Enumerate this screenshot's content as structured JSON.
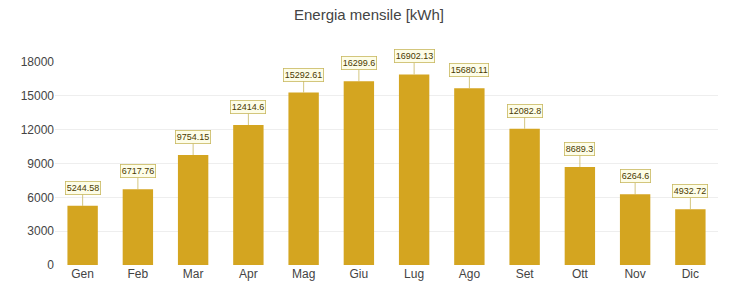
{
  "chart_data": {
    "type": "bar",
    "title": "Energia mensile [kWh]",
    "categories": [
      "Gen",
      "Feb",
      "Mar",
      "Apr",
      "Mag",
      "Giu",
      "Lug",
      "Ago",
      "Set",
      "Ott",
      "Nov",
      "Dic"
    ],
    "values": [
      5244.58,
      6717.76,
      9754.15,
      12414.6,
      15292.61,
      16299.6,
      16902.13,
      15680.11,
      12082.8,
      8689.3,
      6264.6,
      4932.72
    ],
    "color": "#D4A520",
    "ylim": [
      0,
      18000
    ],
    "yticks": [
      0,
      3000,
      6000,
      9000,
      12000,
      15000,
      18000
    ],
    "grid": true,
    "data_labels": true
  }
}
